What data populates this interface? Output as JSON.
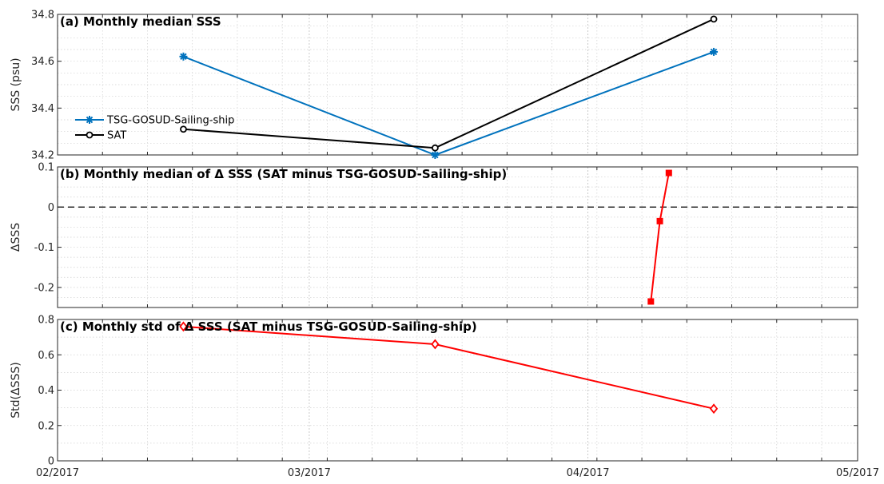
{
  "colors": {
    "grid": "#d0d0d0",
    "axis": "#262626",
    "tsg": "#0072BD",
    "sat": "#000000",
    "diff": "#ff0000",
    "zeroline": "#000000"
  },
  "chart_data": [
    {
      "type": "line",
      "panel": "a",
      "title": "(a) Monthly median SSS",
      "ylabel": "SSS (psu)",
      "ylim": [
        34.2,
        34.8
      ],
      "yticks": [
        "34.2",
        "34.4",
        "34.6",
        "34.8"
      ],
      "xticks": [],
      "grid": true,
      "legend": "left",
      "series": [
        {
          "name": "TSG-GOSUD-Sailing-ship",
          "marker": "asterisk",
          "color": "#0072BD",
          "x": [
            "2017-02-15",
            "2017-03-15",
            "2017-04-15"
          ],
          "y": [
            34.62,
            34.2,
            34.64
          ]
        },
        {
          "name": "SAT",
          "marker": "circle",
          "color": "#000000",
          "x": [
            "2017-02-15",
            "2017-03-15",
            "2017-04-15"
          ],
          "y": [
            34.31,
            34.23,
            34.78
          ]
        }
      ]
    },
    {
      "type": "line",
      "panel": "b",
      "title": "(b) Monthly median of Δ SSS (SAT minus TSG-GOSUD-Sailing-ship)",
      "ylabel": "ΔSSS",
      "ylim": [
        -0.25,
        0.1
      ],
      "yticks": [
        "-0.2",
        "-0.1",
        "0",
        "0.1"
      ],
      "xticks": [],
      "grid": true,
      "zero_line": true,
      "series": [
        {
          "marker": "square",
          "color": "#ff0000",
          "x": [
            "2017-04-08",
            "2017-04-09",
            "2017-04-10"
          ],
          "y": [
            -0.235,
            -0.035,
            0.085
          ]
        }
      ]
    },
    {
      "type": "line",
      "panel": "c",
      "title": "(c) Monthly std of Δ SSS (SAT minus TSG-GOSUD-Sailing-ship)",
      "ylabel": "Std(ΔSSS)",
      "ylim": [
        0,
        0.8
      ],
      "yticks": [
        "0",
        "0.2",
        "0.4",
        "0.6",
        "0.8"
      ],
      "xlim": [
        "2017-02-01",
        "2017-05-01"
      ],
      "xticks": [
        "02/2017",
        "03/2017",
        "04/2017",
        "05/2017"
      ],
      "grid": true,
      "series": [
        {
          "marker": "diamond",
          "color": "#ff0000",
          "x": [
            "2017-02-15",
            "2017-03-15",
            "2017-04-15"
          ],
          "y": [
            0.76,
            0.66,
            0.295
          ]
        }
      ]
    }
  ]
}
